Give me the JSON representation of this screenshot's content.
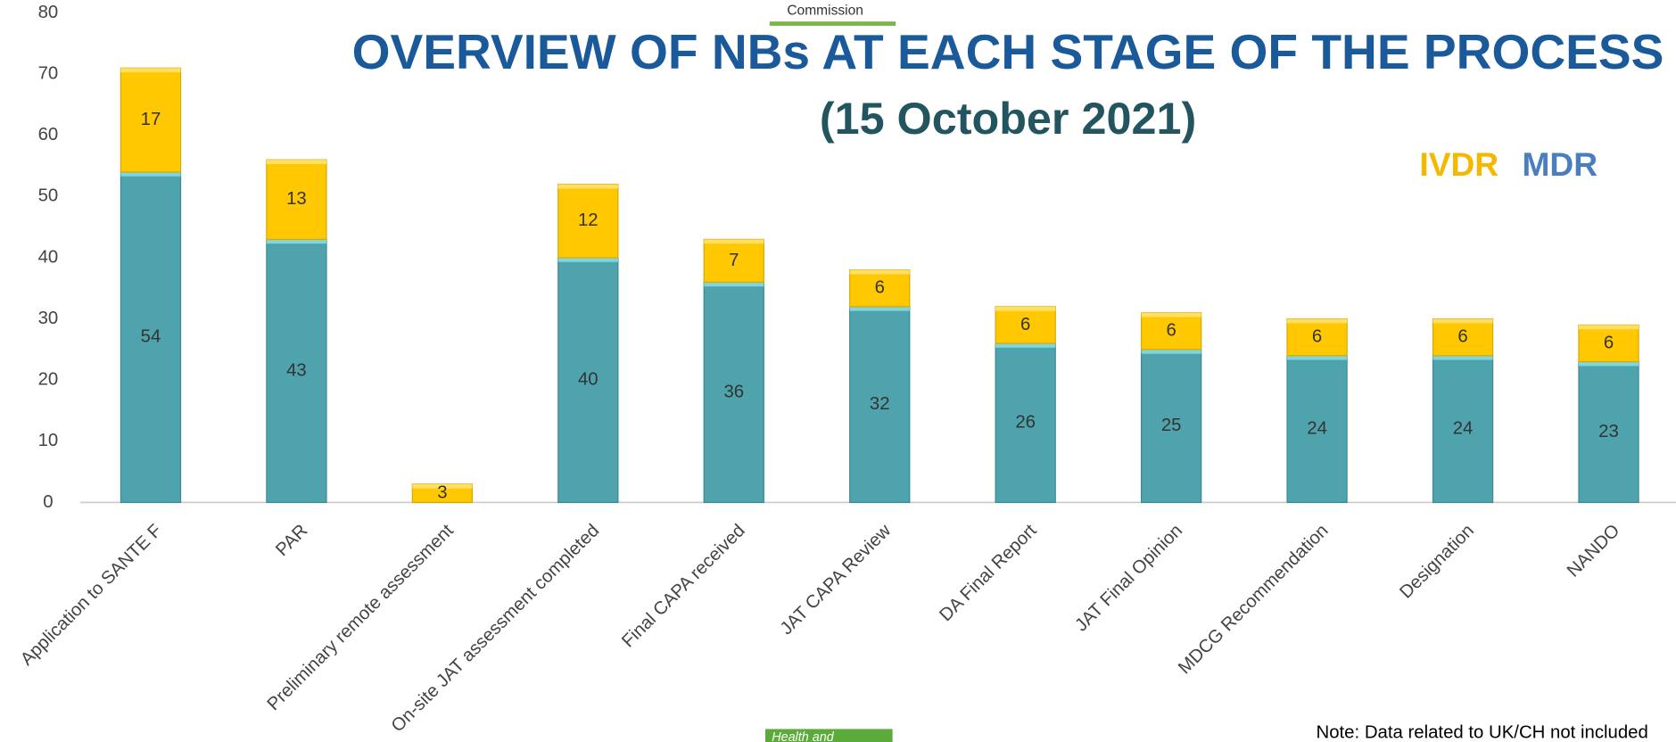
{
  "header": {
    "logo_text": "Commission"
  },
  "chart_data": {
    "type": "stacked_bar",
    "title": "OVERVIEW OF NBs AT EACH STAGE OF THE PROCESS",
    "subtitle": "(15 October 2021)",
    "categories": [
      "Application to SANTE F",
      "PAR",
      "Preliminary remote assessment",
      "On-site JAT assessment completed",
      "Final CAPA received",
      "JAT CAPA Review",
      "DA Final Report",
      "JAT Final Opinion",
      "MDCG Recommendation",
      "Designation",
      "NANDO"
    ],
    "series": [
      {
        "name": "MDR",
        "color": "#4fa3ad",
        "legend_color": "#4a7ebf",
        "values": [
          54,
          43,
          null,
          40,
          36,
          32,
          26,
          25,
          24,
          24,
          23
        ]
      },
      {
        "name": "IVDR",
        "color": "#ffc800",
        "legend_color": "#f5b800",
        "values": [
          17,
          13,
          3,
          12,
          7,
          6,
          6,
          6,
          6,
          6,
          6
        ]
      }
    ],
    "legend_order": [
      1,
      0
    ],
    "ylim": [
      0,
      80
    ],
    "yticks": [
      0,
      10,
      20,
      30,
      40,
      50,
      60,
      70,
      80
    ],
    "note": "Note: Data related to UK/CH not included"
  },
  "footer": {
    "tag": "Health and"
  }
}
